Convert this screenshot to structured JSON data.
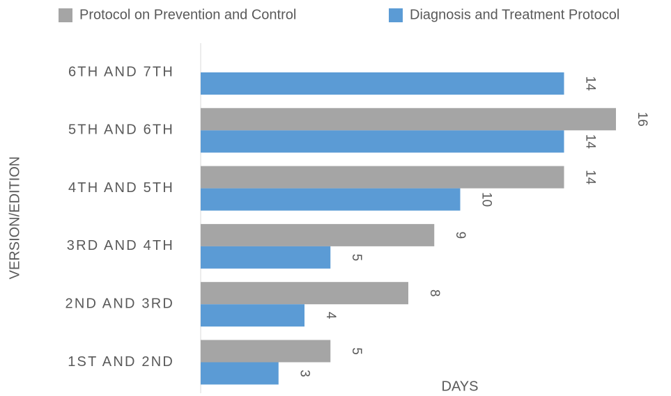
{
  "chart_data": {
    "type": "hbar",
    "categories": [
      "6TH AND 7TH",
      "5TH AND 6TH",
      "4TH AND 5TH",
      "3RD AND 4TH",
      "2ND AND 3RD",
      "1ST AND 2ND"
    ],
    "series": [
      {
        "name": "Protocol on Prevention and Control",
        "color": "#a5a5a5",
        "values": [
          null,
          16,
          14,
          9,
          8,
          5
        ]
      },
      {
        "name": "Diagnosis and Treatment Protocol",
        "color": "#5b9bd5",
        "values": [
          14,
          14,
          10,
          5,
          4,
          3
        ]
      }
    ],
    "xlabel": "DAYS",
    "ylabel": "VERSION/EDITION",
    "xlim": [
      0,
      18
    ],
    "legend": "top"
  }
}
